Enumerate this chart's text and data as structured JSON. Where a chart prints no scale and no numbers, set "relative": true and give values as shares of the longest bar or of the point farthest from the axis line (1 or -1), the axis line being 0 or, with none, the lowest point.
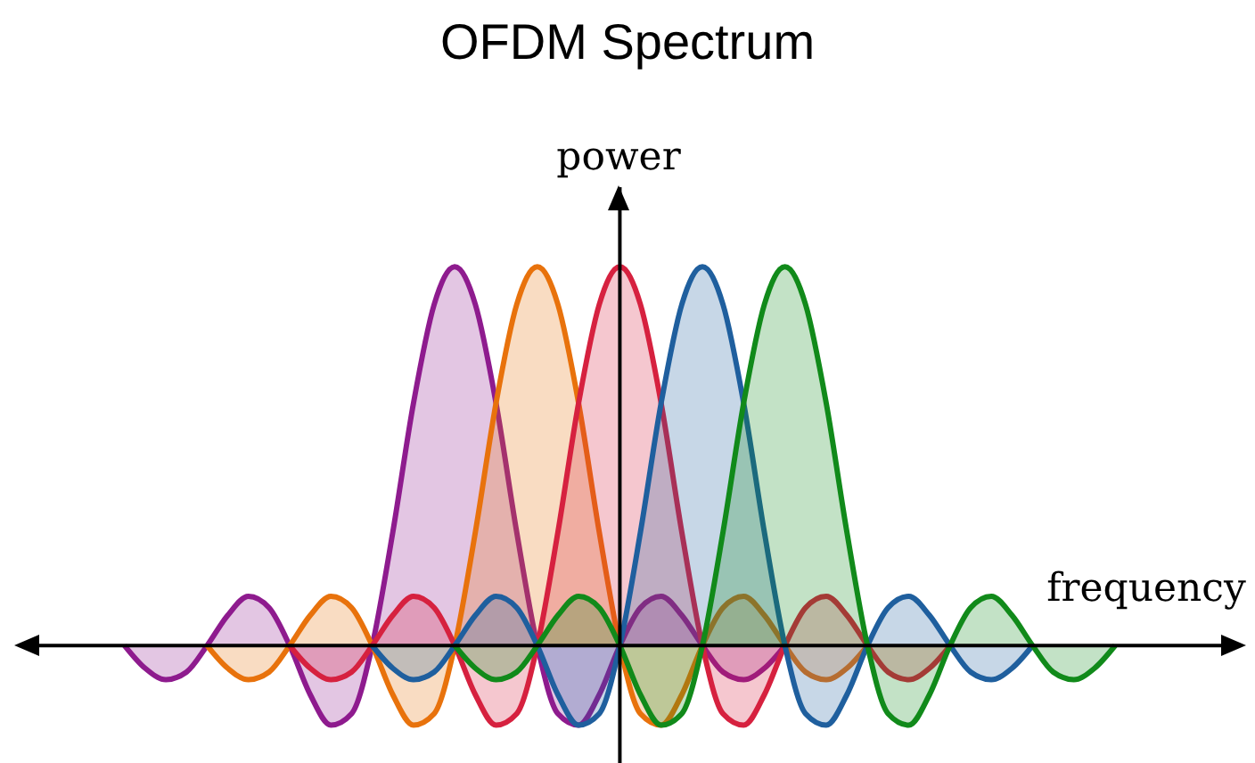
{
  "chart_data": {
    "type": "area",
    "title": "OFDM Spectrum",
    "xlabel": "frequency",
    "ylabel": "power",
    "relative": true,
    "categories": [
      null,
      null,
      null,
      null,
      null,
      null,
      null,
      null,
      null,
      null,
      null,
      null,
      null,
      null,
      null,
      null,
      null,
      null,
      null,
      null,
      null,
      null,
      null,
      null,
      null,
      null,
      null,
      null,
      null,
      null,
      null,
      null,
      null,
      null,
      null,
      null,
      null,
      null,
      null,
      null,
      null,
      null,
      null,
      null,
      null,
      null,
      null,
      null,
      null
    ],
    "series": [
      {
        "color": "#8e1b8e",
        "values": [
          0,
          -0.06,
          -0.09,
          -0.07,
          0,
          0.08,
          0.13,
          0.1,
          0,
          -0.13,
          -0.21,
          -0.18,
          0,
          0.3,
          0.64,
          0.9,
          1,
          0.9,
          0.64,
          0.3,
          0,
          -0.18,
          -0.21,
          -0.13,
          0,
          0.1,
          0.13,
          0.08,
          0,
          -0.07,
          -0.09,
          -0.06,
          0,
          null,
          null,
          null,
          null,
          null,
          null,
          null,
          null,
          null,
          null,
          null,
          null,
          null,
          null,
          null,
          null
        ]
      },
      {
        "color": "#e8720c",
        "values": [
          null,
          null,
          null,
          null,
          0,
          -0.06,
          -0.09,
          -0.07,
          0,
          0.08,
          0.13,
          0.1,
          0,
          -0.13,
          -0.21,
          -0.18,
          0,
          0.3,
          0.64,
          0.9,
          1,
          0.9,
          0.64,
          0.3,
          0,
          -0.18,
          -0.21,
          -0.13,
          0,
          0.1,
          0.13,
          0.08,
          0,
          -0.07,
          -0.09,
          -0.06,
          0,
          null,
          null,
          null,
          null,
          null,
          null,
          null,
          null,
          null,
          null,
          null,
          null
        ]
      },
      {
        "color": "#d6213f",
        "values": [
          null,
          null,
          null,
          null,
          null,
          null,
          null,
          null,
          0,
          -0.06,
          -0.09,
          -0.07,
          0,
          0.08,
          0.13,
          0.1,
          0,
          -0.13,
          -0.21,
          -0.18,
          0,
          0.3,
          0.64,
          0.9,
          1,
          0.9,
          0.64,
          0.3,
          0,
          -0.18,
          -0.21,
          -0.13,
          0,
          0.1,
          0.13,
          0.08,
          0,
          -0.07,
          -0.09,
          -0.06,
          0,
          null,
          null,
          null,
          null,
          null,
          null,
          null,
          null
        ]
      },
      {
        "color": "#1f5f9e",
        "values": [
          null,
          null,
          null,
          null,
          null,
          null,
          null,
          null,
          null,
          null,
          null,
          null,
          0,
          -0.06,
          -0.09,
          -0.07,
          0,
          0.08,
          0.13,
          0.1,
          0,
          -0.13,
          -0.21,
          -0.18,
          0,
          0.3,
          0.64,
          0.9,
          1,
          0.9,
          0.64,
          0.3,
          0,
          -0.18,
          -0.21,
          -0.13,
          0,
          0.1,
          0.13,
          0.08,
          0,
          -0.07,
          -0.09,
          -0.06,
          0,
          null,
          null,
          null,
          null
        ]
      },
      {
        "color": "#118a1a",
        "values": [
          null,
          null,
          null,
          null,
          null,
          null,
          null,
          null,
          null,
          null,
          null,
          null,
          null,
          null,
          null,
          null,
          0,
          -0.06,
          -0.09,
          -0.07,
          0,
          0.08,
          0.13,
          0.1,
          0,
          -0.13,
          -0.21,
          -0.18,
          0,
          0.3,
          0.64,
          0.9,
          1,
          0.9,
          0.64,
          0.3,
          0,
          -0.18,
          -0.21,
          -0.13,
          0,
          0.1,
          0.13,
          0.08,
          0,
          -0.07,
          -0.09,
          -0.06,
          0
        ]
      }
    ]
  }
}
